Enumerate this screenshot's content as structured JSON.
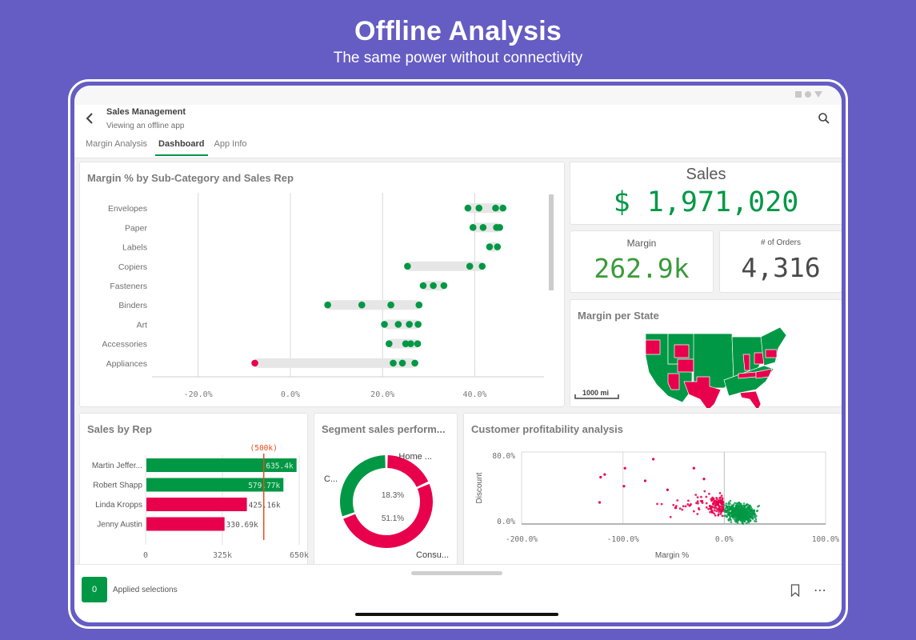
{
  "hero": {
    "title": "Offline Analysis",
    "subtitle": "The same power without connectivity"
  },
  "app": {
    "title": "Sales Management",
    "subtitle": "Viewing an offline app",
    "back_icon": "chevron-left-icon",
    "search_icon": "search-icon",
    "tabs": [
      {
        "label": "Margin Analysis",
        "active": false
      },
      {
        "label": "Dashboard",
        "active": true
      },
      {
        "label": "App Info",
        "active": false
      }
    ]
  },
  "colors": {
    "accent_green": "#009845",
    "accent_red": "#e8004c",
    "reference_line": "#e84a1c",
    "background": "#655cc4"
  },
  "kpis": {
    "sales": {
      "label": "Sales",
      "value": "$ 1,971,020"
    },
    "margin": {
      "label": "Margin",
      "value": "262.9k"
    },
    "orders": {
      "label": "# of Orders",
      "value": "4,316"
    }
  },
  "map": {
    "title": "Margin per State",
    "scale_label": "1000 mi"
  },
  "bottom_bar": {
    "selection_count": "0",
    "selection_label": "Applied selections",
    "bookmark_icon": "bookmark-icon",
    "more_icon": "more-horizontal-icon"
  },
  "chart_data": [
    {
      "type": "scatter",
      "title": "Margin % by Sub-Category and Sales Rep",
      "xlabel": "",
      "ylabel": "",
      "xlim": [
        -30,
        55
      ],
      "xticks": [
        -20,
        0,
        20,
        40
      ],
      "xtick_labels": [
        "-20.0%",
        "0.0%",
        "20.0%",
        "40.0%"
      ],
      "grid": true,
      "categories": [
        "Envelopes",
        "Paper",
        "Labels",
        "Copiers",
        "Fasteners",
        "Binders",
        "Art",
        "Accessories",
        "Appliances"
      ],
      "series": [
        {
          "category": "Envelopes",
          "values": [
            38.5,
            40.9,
            44.5,
            46.1
          ]
        },
        {
          "category": "Paper",
          "values": [
            39.6,
            41.8,
            44.7,
            45.4
          ]
        },
        {
          "category": "Labels",
          "values": [
            43.2,
            44.9
          ]
        },
        {
          "category": "Copiers",
          "values": [
            25.4,
            38.9,
            41.6
          ]
        },
        {
          "category": "Fasteners",
          "values": [
            28.8,
            31.0,
            33.3
          ]
        },
        {
          "category": "Binders",
          "values": [
            8.1,
            15.5,
            21.8,
            27.9
          ]
        },
        {
          "category": "Art",
          "values": [
            20.4,
            23.4,
            25.8,
            27.7
          ]
        },
        {
          "category": "Accessories",
          "values": [
            21.4,
            25.0,
            26.1,
            27.6
          ]
        },
        {
          "category": "Appliances",
          "values": [
            -7.7,
            22.3,
            24.3,
            27.0
          ]
        }
      ],
      "negative_color": "#e8004c",
      "positive_color": "#009845"
    },
    {
      "type": "bar",
      "orientation": "horizontal",
      "title": "Sales by Rep",
      "categories": [
        "Martin Jeffer...",
        "Robert Shapp",
        "Linda Kropps",
        "Jenny Austin"
      ],
      "values": [
        635400,
        579770,
        425160,
        330690
      ],
      "value_labels": [
        "635.4k",
        "579.77k",
        "425.16k",
        "330.69k"
      ],
      "colors": [
        "#009845",
        "#009845",
        "#e8004c",
        "#e8004c"
      ],
      "xlim": [
        0,
        650000
      ],
      "xticks": [
        0,
        325000,
        650000
      ],
      "xtick_labels": [
        "0",
        "325k",
        "650k"
      ],
      "reference_line": {
        "value": 500000,
        "label": "(500k)"
      }
    },
    {
      "type": "pie",
      "donut": true,
      "title": "Segment sales perform...",
      "slices": [
        {
          "label": "Home ...",
          "value": 18.3,
          "color": "#e8004c"
        },
        {
          "label": "Consu...",
          "value": 51.1,
          "color": "#e8004c"
        },
        {
          "label": "C...",
          "value": 30.6,
          "color": "#009845"
        }
      ],
      "center_labels": [
        "18.3%",
        "51.1%"
      ]
    },
    {
      "type": "scatter",
      "title": "Customer profitability analysis",
      "xlabel": "Margin %",
      "ylabel": "Discount",
      "xlim": [
        -200,
        100
      ],
      "ylim": [
        0,
        80
      ],
      "xtick_labels": [
        "-200.0%",
        "-100.0%",
        "0.0%",
        "100.0%"
      ],
      "ytick_labels": [
        "80.0%",
        "0.0%"
      ],
      "clusters": [
        {
          "name": "negative margin",
          "color": "#e8004c",
          "x_range": [
            -125,
            0
          ],
          "y_range": [
            2,
            73
          ],
          "approx_points": 220
        },
        {
          "name": "positive margin",
          "color": "#009845",
          "x_range": [
            0,
            50
          ],
          "y_range": [
            0,
            55
          ],
          "approx_points": 900
        }
      ]
    }
  ]
}
